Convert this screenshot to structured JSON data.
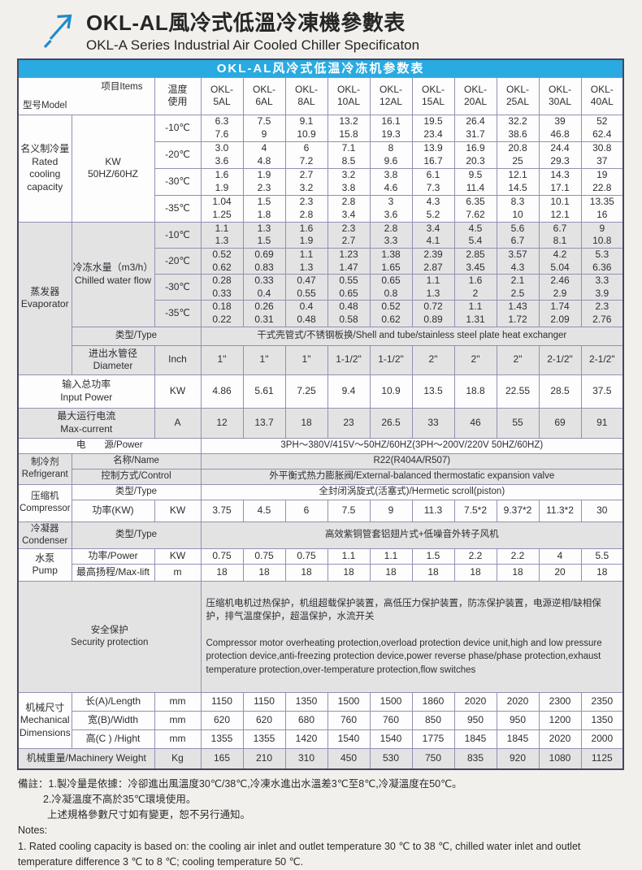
{
  "header": {
    "title_zh": "OKL-AL風冷式低溫冷凍機參數表",
    "title_en": "OKL-A Series Industrial Air Cooled Chiller Specificaton"
  },
  "colors": {
    "accent_blue": "#29aae1",
    "logo_blue": "#1e8bc9",
    "outer_border": "#45455f",
    "grid_border": "#9191b4",
    "row_gray": "#e3e3e4"
  },
  "table": {
    "caption": "OKL-AL风冷式低温冷冻机参数表",
    "corner_model": "型号Model",
    "corner_items": "项目Items",
    "temp_header": "温度\n使用",
    "models": [
      "OKL-\n5AL",
      "OKL-\n6AL",
      "OKL-\n8AL",
      "OKL-\n10AL",
      "OKL-\n12AL",
      "OKL-\n15AL",
      "OKL-\n20AL",
      "OKL-\n25AL",
      "OKL-\n30AL",
      "OKL-\n40AL"
    ],
    "cooling": {
      "label": "名义制冷量\nRated\ncooling\ncapacity",
      "unit": "KW\n50HZ/60HZ",
      "rows": [
        {
          "temp": "-10℃",
          "cells": [
            "6.3\n7.6",
            "7.5\n9",
            "9.1\n10.9",
            "13.2\n15.8",
            "16.1\n19.3",
            "19.5\n23.4",
            "26.4\n31.7",
            "32.2\n38.6",
            "39\n46.8",
            "52\n62.4"
          ]
        },
        {
          "temp": "-20℃",
          "cells": [
            "3.0\n3.6",
            "4\n4.8",
            "6\n7.2",
            "7.1\n8.5",
            "8\n9.6",
            "13.9\n16.7",
            "16.9\n20.3",
            "20.8\n25",
            "24.4\n29.3",
            "30.8\n37"
          ]
        },
        {
          "temp": "-30℃",
          "cells": [
            "1.6\n1.9",
            "1.9\n2.3",
            "2.7\n3.2",
            "3.2\n3.8",
            "3.8\n4.6",
            "6.1\n7.3",
            "9.5\n11.4",
            "12.1\n14.5",
            "14.3\n17.1",
            "19\n22.8"
          ]
        },
        {
          "temp": "-35℃",
          "cells": [
            "1.04\n1.25",
            "1.5\n1.8",
            "2.3\n2.8",
            "2.8\n3.4",
            "3\n3.6",
            "4.3\n5.2",
            "6.35\n7.62",
            "8.3\n10",
            "10.1\n12.1",
            "13.35\n16"
          ]
        }
      ]
    },
    "evaporator": {
      "label": "蒸发器\nEvaporator",
      "flow_label": "冷冻水量（m3/h）\nChilled water flow",
      "rows": [
        {
          "temp": "-10℃",
          "cells": [
            "1.1\n1.3",
            "1.3\n1.5",
            "1.6\n1.9",
            "2.3\n2.7",
            "2.8\n3.3",
            "3.4\n4.1",
            "4.5\n5.4",
            "5.6\n6.7",
            "6.7\n8.1",
            "9\n10.8"
          ]
        },
        {
          "temp": "-20℃",
          "cells": [
            "0.52\n0.62",
            "0.69\n0.83",
            "1.1\n1.3",
            "1.23\n1.47",
            "1.38\n1.65",
            "2.39\n2.87",
            "2.85\n3.45",
            "3.57\n4.3",
            "4.2\n5.04",
            "5.3\n6.36"
          ]
        },
        {
          "temp": "-30℃",
          "cells": [
            "0.28\n0.33",
            "0.33\n0.4",
            "0.47\n0.55",
            "0.55\n0.65",
            "0.65\n0.8",
            "1.1\n1.3",
            "1.6\n2",
            "2.1\n2.5",
            "2.46\n2.9",
            "3.3\n3.9"
          ]
        },
        {
          "temp": "-35℃",
          "cells": [
            "0.18\n0.22",
            "0.26\n0.31",
            "0.4\n0.48",
            "0.48\n0.58",
            "0.52\n0.62",
            "0.72\n0.89",
            "1.1\n1.31",
            "1.43\n1.72",
            "1.74\n2.09",
            "2.3\n2.76"
          ]
        }
      ],
      "type_label": "类型/Type",
      "type_value": "干式壳管式/不锈钢板换/Shell and tube/stainless steel plate heat exchanger",
      "diameter_label": "进出水管径\nDiameter",
      "diameter_unit": "Inch",
      "diameter_cells": [
        "1\"",
        "1\"",
        "1\"",
        "1-1/2\"",
        "1-1/2\"",
        "2\"",
        "2\"",
        "2\"",
        "2-1/2\"",
        "2-1/2\""
      ]
    },
    "input_power": {
      "label": "输入总功率\nInput Power",
      "unit": "KW",
      "cells": [
        "4.86",
        "5.61",
        "7.25",
        "9.4",
        "10.9",
        "13.5",
        "18.8",
        "22.55",
        "28.5",
        "37.5"
      ]
    },
    "max_current": {
      "label": "最大运行电流\nMax-current",
      "unit": "A",
      "cells": [
        "12",
        "13.7",
        "18",
        "23",
        "26.5",
        "33",
        "46",
        "55",
        "69",
        "91"
      ]
    },
    "power_supply": {
      "label": "电　　源/Power",
      "value": "3PH～380V/415V～50HZ/60HZ(3PH～200V/220V  50HZ/60HZ)"
    },
    "refrigerant": {
      "label": "制冷剂\nRefrigerant",
      "name_label": "名称/Name",
      "name_value": "R22(R404A/R507)",
      "control_label": "控制方式/Control",
      "control_value": "外平衡式热力膨胀阀/External-balanced thermostatic expansion valve"
    },
    "compressor": {
      "label": "压缩机\nCompressor",
      "type_label": "类型/Type",
      "type_value": "全封闭涡旋式(活塞式)/Hermetic scroll(piston)",
      "power_label": "功率(KW)",
      "power_unit": "KW",
      "power_cells": [
        "3.75",
        "4.5",
        "6",
        "7.5",
        "9",
        "11.3",
        "7.5*2",
        "9.37*2",
        "11.3*2",
        "30"
      ]
    },
    "condenser": {
      "label": "冷凝器\nCondenser",
      "type_label": "类型/Type",
      "type_value": "高效紫铜管套铝翅片式+低噪音外转子风机"
    },
    "pump": {
      "label": "水泵\nPump",
      "power_label": "功率/Power",
      "power_unit": "KW",
      "power_cells": [
        "0.75",
        "0.75",
        "0.75",
        "1.1",
        "1.1",
        "1.5",
        "2.2",
        "2.2",
        "4",
        "5.5"
      ],
      "lift_label": "最高扬程/Max-lift",
      "lift_unit": "m",
      "lift_cells": [
        "18",
        "18",
        "18",
        "18",
        "18",
        "18",
        "18",
        "18",
        "20",
        "18"
      ]
    },
    "security": {
      "label": "安全保护\nSecurity protection",
      "text_zh": "压缩机电机过热保护，机组超载保护装置，高低压力保护装置，防冻保护装置，电源逆相/缺相保护，排气温度保护，超温保护，水流开关",
      "text_en": "Compressor motor overheating protection,overload protection device unit,high and low pressure protection device,anti-freezing protection device,power reverse phase/phase protection,exhaust temperature protection,over-temperature protection,flow switches"
    },
    "dimensions": {
      "label": "机械尺寸\nMechanical\nDimensions",
      "rows": [
        {
          "label": "长(A)/Length",
          "unit": "mm",
          "cells": [
            "1150",
            "1150",
            "1350",
            "1500",
            "1500",
            "1860",
            "2020",
            "2020",
            "2300",
            "2350"
          ]
        },
        {
          "label": "宽(B)/Width",
          "unit": "mm",
          "cells": [
            "620",
            "620",
            "680",
            "760",
            "760",
            "850",
            "950",
            "950",
            "1200",
            "1350"
          ]
        },
        {
          "label": "高(C ) /Hight",
          "unit": "mm",
          "cells": [
            "1355",
            "1355",
            "1420",
            "1540",
            "1540",
            "1775",
            "1845",
            "1845",
            "2020",
            "2000"
          ]
        }
      ]
    },
    "weight": {
      "label": "机械重量/Machinery Weight",
      "unit": "Kg",
      "cells": [
        "165",
        "210",
        "310",
        "450",
        "530",
        "750",
        "835",
        "920",
        "1080",
        "1125"
      ]
    }
  },
  "notes": {
    "zh1": "備註：1.製冷量是依據：冷卻進出風溫度30℃/38℃,冷凍水進出水溫差3℃至8℃,冷凝溫度在50℃。",
    "zh2": "2.冷凝溫度不高於35℃環境使用。",
    "zh3": "上述規格參數尺寸如有變更，恕不另行通知。",
    "en_label": "Notes:",
    "en1": "1. Rated cooling capacity is based on: the cooling air inlet and outlet temperature 30 ℃ to 38 ℃, chilled water inlet and outlet temperature difference 3 ℃ to 8 ℃; cooling temperature 50 ℃."
  }
}
